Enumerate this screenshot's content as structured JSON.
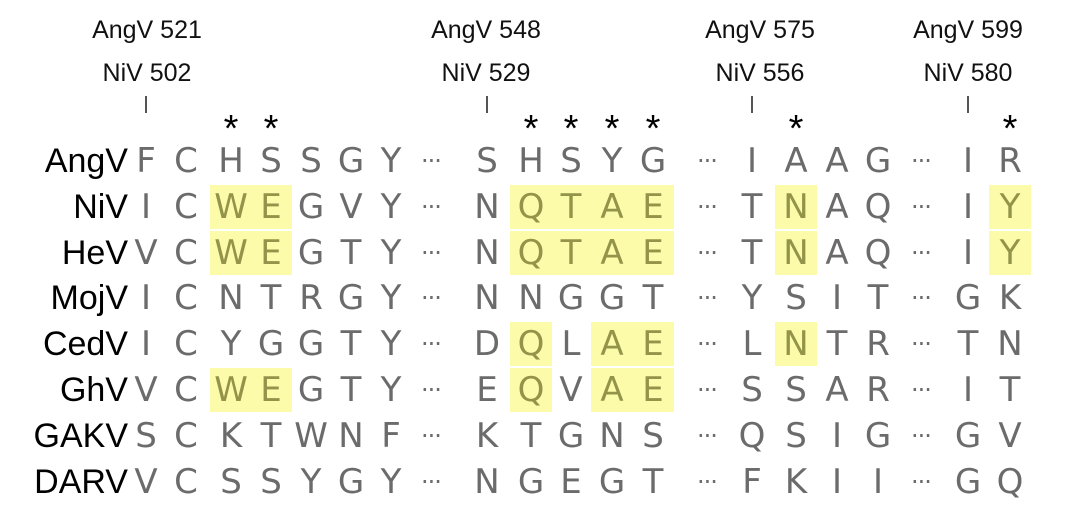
{
  "position_labels": [
    {
      "angv": "AngV 521",
      "niv": "NiV 502"
    },
    {
      "angv": "AngV 548",
      "niv": "NiV 529"
    },
    {
      "angv": "AngV 575",
      "niv": "NiV 556"
    },
    {
      "angv": "AngV 599",
      "niv": "NiV 580"
    }
  ],
  "gap_symbol": "···",
  "star_symbol": "*",
  "highlight_color": "#fbfbaa",
  "residue_color": "#6b6b6b",
  "species": [
    {
      "name": "AngV",
      "residues": [
        "F",
        "C",
        "H",
        "S",
        "S",
        "G",
        "Y",
        "",
        "S",
        "H",
        "S",
        "Y",
        "G",
        "",
        "I",
        "A",
        "A",
        "G",
        "",
        "I",
        "R"
      ]
    },
    {
      "name": "NiV",
      "residues": [
        "I",
        "C",
        "W",
        "E",
        "G",
        "V",
        "Y",
        "",
        "N",
        "Q",
        "T",
        "A",
        "E",
        "",
        "T",
        "N",
        "A",
        "Q",
        "",
        "I",
        "Y"
      ]
    },
    {
      "name": "HeV",
      "residues": [
        "V",
        "C",
        "W",
        "E",
        "G",
        "T",
        "Y",
        "",
        "N",
        "Q",
        "T",
        "A",
        "E",
        "",
        "T",
        "N",
        "A",
        "Q",
        "",
        "I",
        "Y"
      ]
    },
    {
      "name": "MojV",
      "residues": [
        "I",
        "C",
        "N",
        "T",
        "R",
        "G",
        "Y",
        "",
        "N",
        "N",
        "G",
        "G",
        "T",
        "",
        "Y",
        "S",
        "I",
        "T",
        "",
        "G",
        "K"
      ]
    },
    {
      "name": "CedV",
      "residues": [
        "I",
        "C",
        "Y",
        "G",
        "G",
        "T",
        "Y",
        "",
        "D",
        "Q",
        "L",
        "A",
        "E",
        "",
        "L",
        "N",
        "T",
        "R",
        "",
        "T",
        "N"
      ]
    },
    {
      "name": "GhV",
      "residues": [
        "V",
        "C",
        "W",
        "E",
        "G",
        "T",
        "Y",
        "",
        "E",
        "Q",
        "V",
        "A",
        "E",
        "",
        "S",
        "S",
        "A",
        "R",
        "",
        "I",
        "T"
      ]
    },
    {
      "name": "GAKV",
      "residues": [
        "S",
        "C",
        "K",
        "T",
        "W",
        "N",
        "F",
        "",
        "K",
        "T",
        "G",
        "N",
        "S",
        "",
        "Q",
        "S",
        "I",
        "G",
        "",
        "G",
        "V"
      ]
    },
    {
      "name": "DARV",
      "residues": [
        "V",
        "C",
        "S",
        "S",
        "Y",
        "G",
        "Y",
        "",
        "N",
        "G",
        "E",
        "G",
        "T",
        "",
        "F",
        "K",
        "I",
        "I",
        "",
        "G",
        "Q"
      ]
    }
  ],
  "starred_columns": [
    2,
    3,
    9,
    10,
    11,
    12,
    15,
    20
  ],
  "highlights": [
    {
      "species": "NiV",
      "columns": [
        2,
        3,
        9,
        10,
        11,
        12,
        15,
        20
      ]
    },
    {
      "species": "HeV",
      "columns": [
        2,
        3,
        9,
        10,
        11,
        12,
        15,
        20
      ]
    },
    {
      "species": "CedV",
      "columns": [
        9,
        11,
        12,
        15
      ]
    },
    {
      "species": "GhV",
      "columns": [
        2,
        3,
        9,
        11,
        12
      ]
    }
  ]
}
